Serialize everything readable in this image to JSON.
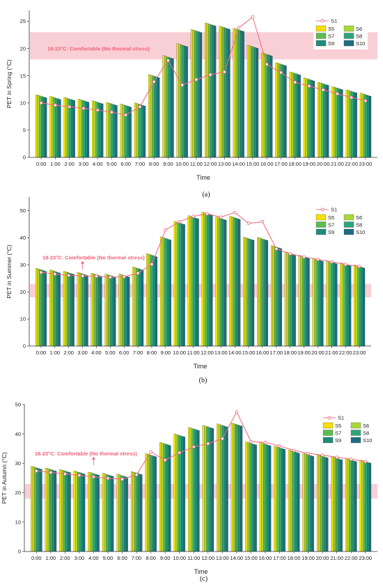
{
  "theme": {
    "band_color": "#f8c7cf",
    "band_text_color": "#f0607a",
    "line_color": "#f07080",
    "axis_color": "#333333"
  },
  "series_colors": {
    "S5": "#f5e000",
    "S6": "#a9d83a",
    "S7": "#5cbc4e",
    "S8": "#2fa47c",
    "S9": "#1f8c7a",
    "S10": "#1d6f7f"
  },
  "chart_data": [
    {
      "type": "bar",
      "panel_caption": "(a)",
      "xlabel": "Time",
      "ylabel": "PET in Spring (°C)",
      "ylim": [
        0,
        27
      ],
      "yticks": [
        0,
        5,
        10,
        15,
        20,
        25
      ],
      "categories": [
        "0:00",
        "1:00",
        "2:00",
        "3:00",
        "4:00",
        "5:00",
        "6:00",
        "7:00",
        "8:00",
        "9:00",
        "10:00",
        "11:00",
        "12:00",
        "13:00",
        "14:00",
        "15:00",
        "16:00",
        "17:00",
        "18:00",
        "19:00",
        "20:00",
        "21:00",
        "22:00",
        "23:00"
      ],
      "comfort_band": {
        "range": [
          18,
          23
        ],
        "label": "18-23°C: Comfortable (No thermal stress)"
      },
      "legend": [
        "S1",
        "S5",
        "S6",
        "S7",
        "S8",
        "S9",
        "S10"
      ],
      "bar_values": [
        11.5,
        11.2,
        11.0,
        10.7,
        10.4,
        10.1,
        9.8,
        10.0,
        15.2,
        18.7,
        20.9,
        23.5,
        24.7,
        24.1,
        23.7,
        20.6,
        19.2,
        17.4,
        15.7,
        14.6,
        13.8,
        13.0,
        12.4,
        11.8
      ],
      "line_series": {
        "name": "S1",
        "values": [
          10.0,
          9.6,
          9.3,
          9.0,
          8.7,
          8.3,
          7.8,
          9.3,
          13.9,
          17.8,
          13.3,
          14.3,
          15.2,
          15.7,
          23.8,
          25.8,
          17.1,
          15.6,
          13.8,
          13.1,
          12.4,
          11.7,
          11.0,
          10.4
        ]
      }
    },
    {
      "type": "bar",
      "panel_caption": "(b)",
      "xlabel": "Time",
      "ylabel": "PET in Summer (°C)",
      "ylim": [
        0,
        55
      ],
      "yticks": [
        0,
        10,
        20,
        30,
        40,
        50
      ],
      "categories": [
        "0:00",
        "1:00",
        "2:00",
        "3:00",
        "4:00",
        "5:00",
        "6:00",
        "7:00",
        "8:00",
        "9:00",
        "10:00",
        "11:00",
        "12:00",
        "13:00",
        "14:00",
        "15:00",
        "16:00",
        "17:00",
        "18:00",
        "19:00",
        "20:00",
        "21:00",
        "22:00",
        "23:00"
      ],
      "comfort_band": {
        "range": [
          18,
          23
        ],
        "label": "18-23°C: Comfortable (No thermal stress)"
      },
      "legend": [
        "S1",
        "S5",
        "S6",
        "S7",
        "S8",
        "S9",
        "S10"
      ],
      "bar_values": [
        28.7,
        28.1,
        27.6,
        27.2,
        26.9,
        26.6,
        26.6,
        29.2,
        34.1,
        40.3,
        46.0,
        48.1,
        49.4,
        47.6,
        47.9,
        40.2,
        40.1,
        37.1,
        34.6,
        33.5,
        32.4,
        31.5,
        30.7,
        29.9
      ],
      "line_series": {
        "name": "S1",
        "values": [
          27.2,
          26.6,
          26.1,
          25.9,
          25.8,
          25.4,
          25.6,
          26.9,
          30.2,
          42.9,
          45.9,
          47.9,
          48.8,
          47.6,
          49.3,
          45.3,
          45.9,
          35.9,
          34.1,
          32.9,
          32.0,
          31.1,
          30.1,
          29.4
        ]
      }
    },
    {
      "type": "bar",
      "panel_caption": "(c)",
      "xlabel": "Time",
      "ylabel": "PET in Autumn (°C)",
      "ylim": [
        0,
        50
      ],
      "yticks": [
        0,
        10,
        20,
        30,
        40,
        50
      ],
      "categories": [
        "0:00",
        "1:00",
        "2:00",
        "3:00",
        "4:00",
        "5:00",
        "6:00",
        "7:00",
        "8:00",
        "9:00",
        "10:00",
        "11:00",
        "12:00",
        "13:00",
        "14:00",
        "15:00",
        "16:00",
        "17:00",
        "18:00",
        "19:00",
        "20:00",
        "21:00",
        "22:00",
        "23:00"
      ],
      "comfort_band": {
        "range": [
          18,
          23
        ],
        "label": "18-23°C: Comfortable (No thermal stress)"
      },
      "legend": [
        "S1",
        "S5",
        "S6",
        "S7",
        "S8",
        "S9",
        "S10"
      ],
      "bar_values": [
        29.0,
        28.4,
        27.9,
        27.4,
        27.0,
        26.6,
        26.3,
        27.2,
        33.3,
        37.1,
        40.0,
        42.2,
        42.9,
        43.4,
        43.7,
        37.3,
        37.0,
        35.8,
        34.5,
        33.4,
        32.9,
        32.2,
        31.6,
        31.1
      ],
      "line_series": {
        "name": "S1",
        "values": [
          27.4,
          26.9,
          26.4,
          25.9,
          25.4,
          24.9,
          24.6,
          26.1,
          33.9,
          31.1,
          33.6,
          35.6,
          36.7,
          38.4,
          47.5,
          37.4,
          37.1,
          35.9,
          34.4,
          33.4,
          32.8,
          32.1,
          31.4,
          30.6
        ]
      }
    }
  ]
}
